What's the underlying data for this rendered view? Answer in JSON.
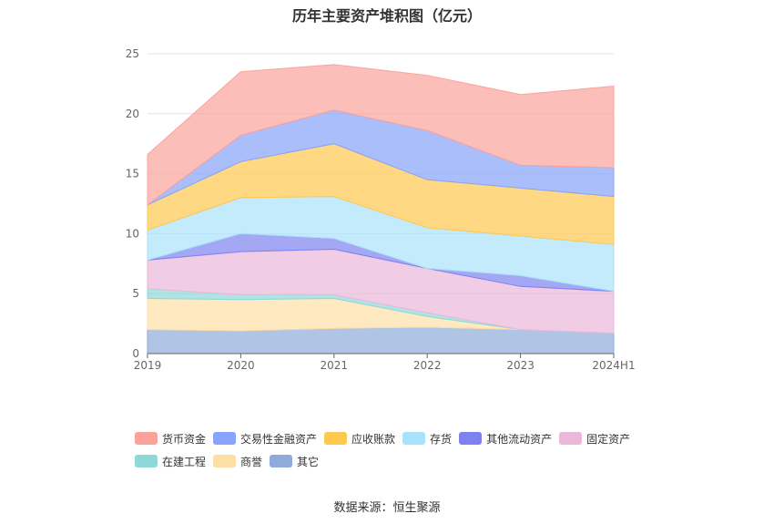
{
  "chart_data": {
    "type": "area",
    "stacked": true,
    "title": "历年主要资产堆积图（亿元）",
    "categories": [
      "2019",
      "2020",
      "2021",
      "2022",
      "2023",
      "2024H1"
    ],
    "ylim": [
      0,
      25
    ],
    "yticks": [
      0,
      5,
      10,
      15,
      20,
      25
    ],
    "grid": true,
    "legend_position": "bottom",
    "series": [
      {
        "name": "其它",
        "color": "#8fabdb",
        "values": [
          2.0,
          1.9,
          2.1,
          2.2,
          2.0,
          1.7
        ]
      },
      {
        "name": "商誉",
        "color": "#fddfa6",
        "values": [
          2.6,
          2.6,
          2.5,
          0.9,
          0,
          0
        ]
      },
      {
        "name": "在建工程",
        "color": "#8ed8d8",
        "values": [
          0.8,
          0.4,
          0.3,
          0.3,
          0,
          0
        ]
      },
      {
        "name": "固定资产",
        "color": "#eab8d9",
        "values": [
          2.4,
          3.6,
          3.8,
          3.7,
          3.6,
          3.5
        ]
      },
      {
        "name": "其他流动资产",
        "color": "#7d82f0",
        "values": [
          0,
          1.5,
          0.9,
          0,
          0.9,
          0
        ]
      },
      {
        "name": "存货",
        "color": "#a9e2fb",
        "values": [
          2.5,
          3.0,
          3.5,
          3.4,
          3.3,
          3.9
        ]
      },
      {
        "name": "应收账款",
        "color": "#ffc84f",
        "values": [
          2.1,
          3.0,
          4.4,
          4.0,
          4.0,
          4.0
        ]
      },
      {
        "name": "交易性金融资产",
        "color": "#87a3fb",
        "values": [
          0,
          2.2,
          2.8,
          4.1,
          1.9,
          2.4
        ]
      },
      {
        "name": "货币资金",
        "color": "#fba39b",
        "values": [
          4.2,
          5.3,
          3.8,
          4.6,
          5.9,
          6.8
        ]
      }
    ],
    "legend_order": [
      "货币资金",
      "交易性金融资产",
      "应收账款",
      "存货",
      "其他流动资产",
      "固定资产",
      "在建工程",
      "商誉",
      "其它"
    ]
  },
  "source": "数据来源：恒生聚源"
}
